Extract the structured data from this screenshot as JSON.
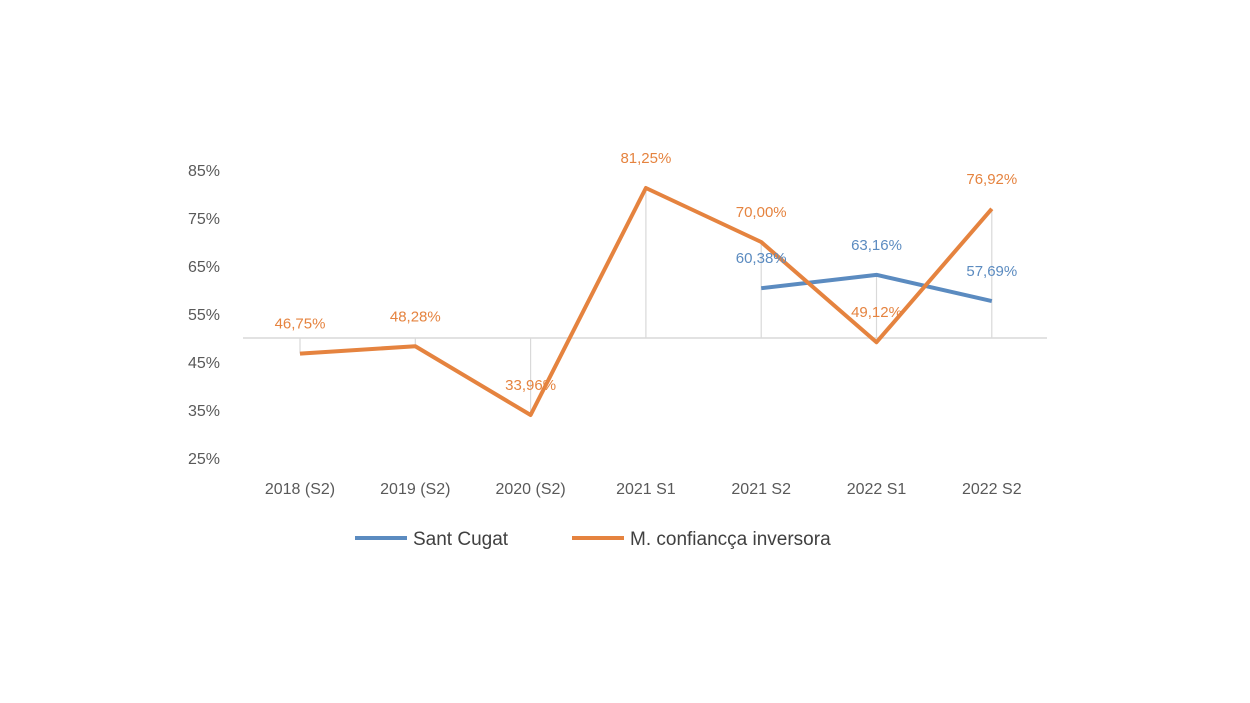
{
  "chart_data": {
    "type": "line",
    "title": "",
    "xlabel": "",
    "ylabel": "",
    "categories": [
      "2018 (S2)",
      "2019 (S2)",
      "2020 (S2)",
      "2021 S1",
      "2021 S2",
      "2022 S1",
      "2022 S2"
    ],
    "yticks": [
      "25%",
      "35%",
      "45%",
      "55%",
      "65%",
      "75%",
      "85%"
    ],
    "ylim": [
      25,
      85
    ],
    "baseline": 50,
    "legend_position": "bottom",
    "series": [
      {
        "name": "Sant Cugat",
        "color": "#5B8BC0",
        "values": [
          null,
          null,
          null,
          null,
          60.38,
          63.16,
          57.69
        ],
        "labels": [
          null,
          null,
          null,
          null,
          "60,38%",
          "63,16%",
          "57,69%"
        ]
      },
      {
        "name": "M. confiancça inversora",
        "color": "#E5833F",
        "values": [
          46.75,
          48.28,
          33.96,
          81.25,
          70.0,
          49.12,
          76.92
        ],
        "labels": [
          "46,75%",
          "48,28%",
          "33,96%",
          "81,25%",
          "70,00%",
          "49,12%",
          "76,92%"
        ]
      }
    ]
  }
}
